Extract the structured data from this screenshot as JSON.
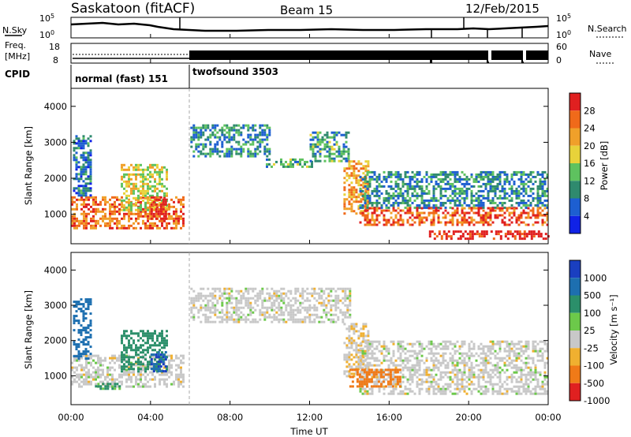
{
  "header": {
    "title": "Saskatoon (fitACF)",
    "beam": "Beam 15",
    "date": "12/Feb/2015"
  },
  "noise_panel": {
    "left_label": "N.Sky",
    "right_label": "N.Search",
    "left_ticks": [
      "10^5",
      "10^0"
    ],
    "right_ticks": [
      "10^5",
      "10^0"
    ]
  },
  "freq_panel": {
    "left_label_1": "Freq.",
    "left_label_2": "[MHz]",
    "right_label": "Nave",
    "left_ticks": [
      "18",
      "8"
    ],
    "right_ticks": [
      "60",
      "0"
    ]
  },
  "cpid_panel": {
    "label": "CPID",
    "modes": [
      {
        "name": "normal (fast) 151",
        "start": "00:00",
        "end": "05:54"
      },
      {
        "name": "twofsound 3503",
        "start": "05:54",
        "end": "24:00"
      }
    ]
  },
  "power_panel": {
    "ylabel": "Slant Range [km]",
    "yticks": [
      "1000",
      "2000",
      "3000",
      "4000"
    ],
    "cbar_label": "Power [dB]",
    "cbar_ticks": [
      "4",
      "8",
      "12",
      "16",
      "20",
      "24",
      "28"
    ],
    "cbar_colors": [
      "#1022e6",
      "#1d5fd1",
      "#2f8a6e",
      "#5ec25f",
      "#e8d23a",
      "#f0a02a",
      "#f06a1a",
      "#e02020"
    ]
  },
  "velocity_panel": {
    "ylabel": "Slant Range [km]",
    "yticks": [
      "1000",
      "2000",
      "3000",
      "4000"
    ],
    "cbar_label": "Velocity [m s⁻¹]",
    "cbar_ticks": [
      "1000",
      "500",
      "100",
      "25",
      "-25",
      "-100",
      "-500",
      "-1000"
    ],
    "cbar_colors": [
      "#1a3fc0",
      "#1d6fb0",
      "#2b8f6a",
      "#6cc94a",
      "#c8c8c8",
      "#f0b030",
      "#f07a18",
      "#e02020"
    ]
  },
  "x_axis": {
    "label": "Time UT",
    "ticks": [
      "00:00",
      "04:00",
      "08:00",
      "12:00",
      "16:00",
      "20:00",
      "00:00"
    ]
  },
  "chart_data": [
    {
      "type": "heatmap",
      "title": "Saskatoon (fitACF)",
      "subtitle": "Beam 15",
      "xlabel": "Time UT",
      "ylabel": "Slant Range [km]",
      "xlim_hours": [
        0,
        24
      ],
      "ylim_km": [
        180,
        4500
      ],
      "colorbar": "Power [dB]",
      "colorbar_range": [
        0,
        30
      ],
      "regions": [
        {
          "t0": 0.0,
          "t1": 5.6,
          "r0": 600,
          "r1": 1500,
          "level": 0.8
        },
        {
          "t0": 0.1,
          "t1": 1.0,
          "r0": 1500,
          "r1": 3200,
          "level": 0.25
        },
        {
          "t0": 2.5,
          "t1": 4.8,
          "r0": 1100,
          "r1": 2400,
          "level": 0.55
        },
        {
          "t0": 4.0,
          "t1": 4.8,
          "r0": 900,
          "r1": 1500,
          "level": 0.95
        },
        {
          "t0": 6.0,
          "t1": 10.0,
          "r0": 2600,
          "r1": 3500,
          "level": 0.3
        },
        {
          "t0": 9.8,
          "t1": 12.2,
          "r0": 2350,
          "r1": 2550,
          "level": 0.4
        },
        {
          "t0": 12.0,
          "t1": 14.0,
          "r0": 2500,
          "r1": 3300,
          "level": 0.35
        },
        {
          "t0": 13.7,
          "t1": 15.0,
          "r0": 1000,
          "r1": 2500,
          "level": 0.7
        },
        {
          "t0": 14.5,
          "t1": 24.0,
          "r0": 1200,
          "r1": 2200,
          "level": 0.3
        },
        {
          "t0": 14.5,
          "t1": 24.0,
          "r0": 700,
          "r1": 1200,
          "level": 0.85
        },
        {
          "t0": 18.0,
          "t1": 24.0,
          "r0": 300,
          "r1": 550,
          "level": 0.95
        }
      ]
    },
    {
      "type": "heatmap",
      "xlabel": "Time UT",
      "ylabel": "Slant Range [km]",
      "xlim_hours": [
        0,
        24
      ],
      "ylim_km": [
        180,
        4500
      ],
      "colorbar": "Velocity [m s⁻¹]",
      "colorbar_range": [
        -1000,
        1000
      ],
      "regions": [
        {
          "t0": 0.0,
          "t1": 5.6,
          "r0": 700,
          "r1": 1600,
          "value": 0
        },
        {
          "t0": 0.1,
          "t1": 1.0,
          "r0": 1500,
          "r1": 3200,
          "value": 600
        },
        {
          "t0": 2.5,
          "t1": 4.8,
          "r0": 1100,
          "r1": 2300,
          "value": 200
        },
        {
          "t0": 4.0,
          "t1": 4.8,
          "r0": 1100,
          "r1": 1700,
          "value": 1000
        },
        {
          "t0": 1.2,
          "t1": 2.5,
          "r0": 600,
          "r1": 800,
          "value": 120
        },
        {
          "t0": 6.0,
          "t1": 14.0,
          "r0": 2500,
          "r1": 3500,
          "value": 0
        },
        {
          "t0": 13.7,
          "t1": 15.0,
          "r0": 1000,
          "r1": 2500,
          "value": -20
        },
        {
          "t0": 14.5,
          "t1": 24.0,
          "r0": 500,
          "r1": 2000,
          "value": 0
        },
        {
          "t0": 14.0,
          "t1": 16.5,
          "r0": 700,
          "r1": 1200,
          "value": -200
        }
      ]
    }
  ]
}
